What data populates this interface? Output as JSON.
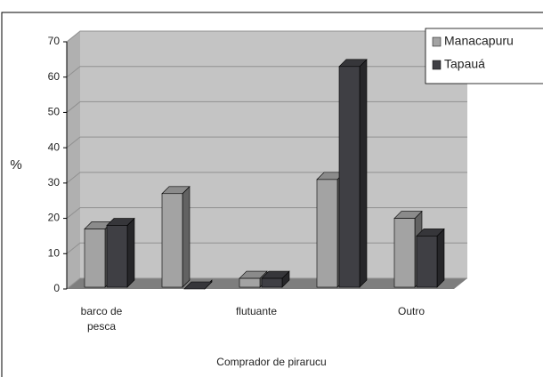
{
  "chart_data": {
    "type": "bar3d",
    "x_label": "Comprador de pirarucu",
    "y_label": "%",
    "categories": [
      "barco de pesca",
      null,
      "flutuante",
      null,
      "Outro"
    ],
    "series": [
      {
        "name": "Manacapuru",
        "color": "#a3a3a3",
        "values": [
          17,
          27,
          3,
          31,
          20
        ]
      },
      {
        "name": "Tapauá",
        "color": "#3f3f44",
        "values": [
          18,
          0,
          3,
          63,
          15
        ]
      }
    ],
    "ylim": [
      0,
      70
    ],
    "yticks": [
      0,
      10,
      20,
      30,
      40,
      50,
      60,
      70
    ],
    "grid": true,
    "legend": "top-right"
  }
}
